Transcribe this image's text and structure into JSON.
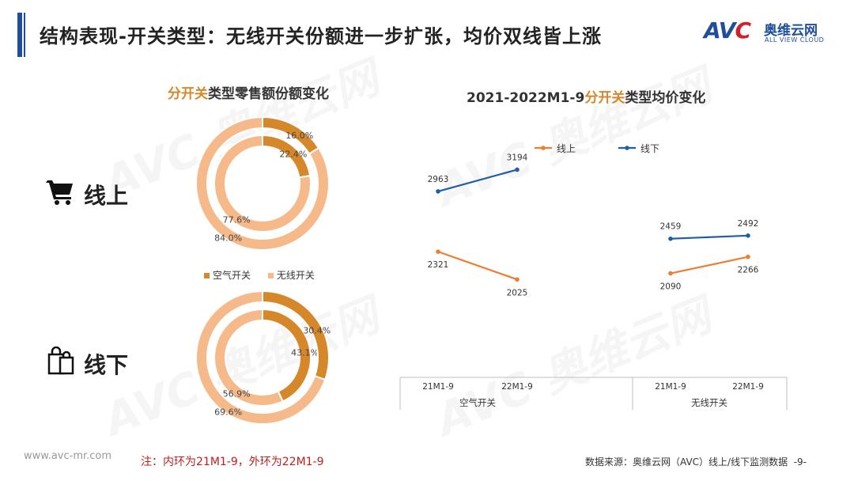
{
  "page": {
    "title": "结构表现-开关类型：无线开关份额进一步扩张，均价双线皆上涨",
    "note": "注：内环为21M1-9，外环为22M1-9",
    "site": "www.avc-mr.com",
    "source": "数据来源：奥维云网（AVC）线上/线下监测数据",
    "page_number": "-9-"
  },
  "logo": {
    "mark_a": "AV",
    "mark_c": "C",
    "cn": "奥维云网",
    "en": "ALL VIEW CLOUD"
  },
  "watermark": {
    "text": "AVC 奥维云网",
    "sub": "ALL VIEW CLOUD"
  },
  "rows": {
    "online": "线上",
    "offline": "线下"
  },
  "icons": {
    "online": "shopping-cart-icon",
    "offline": "shopping-bags-icon"
  },
  "colors": {
    "air": "#d5872a",
    "wireless": "#f5b98a",
    "online_line": "#ed7d31",
    "offline_line": "#1f5fa8",
    "accent": "#1f4e9c"
  },
  "chart_data": [
    {
      "type": "pie",
      "title_highlight": "分开关",
      "title_rest": "类型零售额份额变化",
      "legend": [
        "空气开关",
        "无线开关"
      ],
      "legend_position": "between-donuts",
      "rings": [
        {
          "group": "线上",
          "ring": "inner",
          "period": "21M1-9",
          "slices": [
            {
              "label": "空气开关",
              "value": 22.4,
              "text": "22.4%"
            },
            {
              "label": "无线开关",
              "value": 77.6,
              "text": "77.6%"
            }
          ]
        },
        {
          "group": "线上",
          "ring": "outer",
          "period": "22M1-9",
          "slices": [
            {
              "label": "空气开关",
              "value": 16.0,
              "text": "16.0%"
            },
            {
              "label": "无线开关",
              "value": 84.0,
              "text": "84.0%"
            }
          ]
        },
        {
          "group": "线下",
          "ring": "inner",
          "period": "21M1-9",
          "slices": [
            {
              "label": "空气开关",
              "value": 43.1,
              "text": "43.1%"
            },
            {
              "label": "无线开关",
              "value": 56.9,
              "text": "56.9%"
            }
          ]
        },
        {
          "group": "线下",
          "ring": "outer",
          "period": "22M1-9",
          "slices": [
            {
              "label": "空气开关",
              "value": 30.4,
              "text": "30.4%"
            },
            {
              "label": "无线开关",
              "value": 69.6,
              "text": "69.6%"
            }
          ]
        }
      ]
    },
    {
      "type": "line",
      "title_prefix": "2021-2022M1-9",
      "title_highlight": "分开关",
      "title_rest": "类型均价变化",
      "legend_position": "top",
      "groups": [
        "空气开关",
        "无线开关"
      ],
      "categories": [
        "21M1-9",
        "22M1-9"
      ],
      "series": [
        {
          "name": "线上",
          "groups": [
            {
              "group": "空气开关",
              "values": [
                2321,
                2025
              ]
            },
            {
              "group": "无线开关",
              "values": [
                2090,
                2266
              ]
            }
          ]
        },
        {
          "name": "线下",
          "groups": [
            {
              "group": "空气开关",
              "values": [
                2963,
                3194
              ]
            },
            {
              "group": "无线开关",
              "values": [
                2459,
                2492
              ]
            }
          ]
        }
      ]
    }
  ]
}
